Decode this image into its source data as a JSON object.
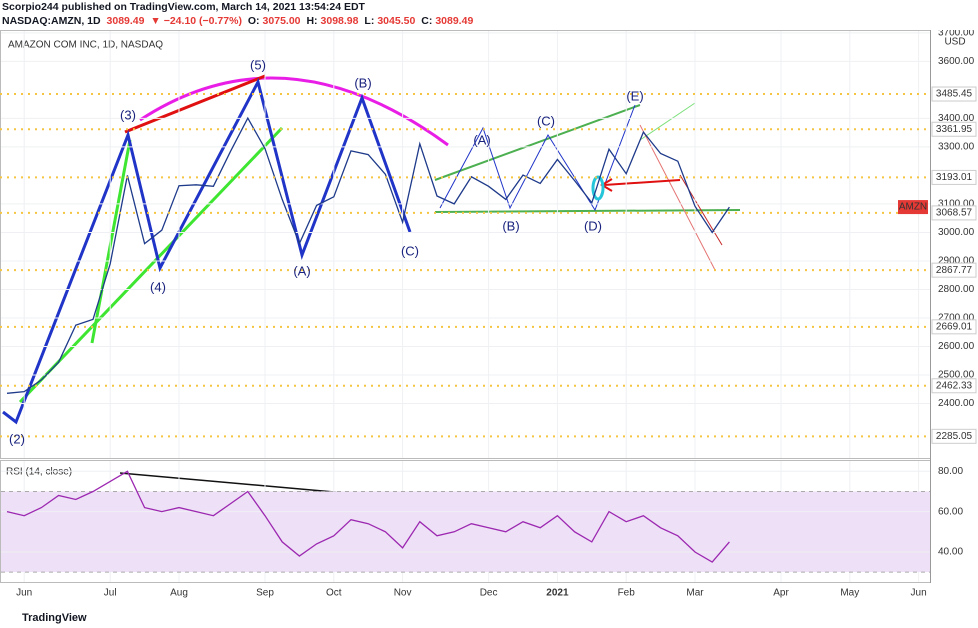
{
  "header": {
    "published": "Scorpio244 published on TradingView.com, March 14, 2021 13:54:24 EDT",
    "symbol": "NASDAQ:AMZN, 1D",
    "last": "3089.49",
    "change": "▼ −24.10 (−0.77%)",
    "open_label": "O:",
    "open": "3075.00",
    "high_label": "H:",
    "high": "3098.98",
    "low_label": "L:",
    "low": "3045.50",
    "close_label": "C:",
    "close": "3089.49"
  },
  "footer": "TradingView",
  "chart_data": [
    {
      "type": "line",
      "title": "AMAZON COM INC, 1D, NASDAQ",
      "currency": "USD",
      "last_label": "AMZN",
      "color": "#1e3a8a",
      "categories": [
        null,
        "Jun",
        null,
        null,
        null,
        null,
        "Jul",
        null,
        null,
        null,
        "Aug",
        null,
        null,
        null,
        null,
        "Sep",
        null,
        null,
        null,
        "Oct",
        null,
        null,
        null,
        "Nov",
        null,
        null,
        null,
        null,
        "Dec",
        null,
        null,
        null,
        "2021",
        null,
        null,
        null,
        "Feb",
        null,
        null,
        null,
        "Mar",
        null,
        null,
        null,
        null,
        "Apr",
        null,
        null,
        null,
        "May",
        null,
        null,
        null,
        "Jun"
      ],
      "values": [
        2436,
        2442,
        2483,
        2545,
        2675,
        2695,
        2890,
        3200,
        2961,
        3008,
        3164,
        3167,
        3162,
        3285,
        3401,
        3294,
        3116,
        2961,
        3095,
        3125,
        3286,
        3273,
        3204,
        3036,
        3311,
        3128,
        3100,
        3195,
        3162,
        3116,
        3201,
        3172,
        3256,
        3182,
        3104,
        3292,
        3206,
        3352,
        3277,
        3250,
        3092,
        3000,
        3089,
        null,
        null,
        null,
        null,
        null,
        null,
        null,
        null,
        null,
        null,
        null
      ],
      "ylim": [
        2209,
        3710
      ],
      "yticks": [
        {
          "value": 3700,
          "label": "3700.00"
        },
        {
          "value": 3600,
          "label": "3600.00"
        },
        {
          "value": 3400,
          "label": "3400.00"
        },
        {
          "value": 3300,
          "label": "3300.00"
        },
        {
          "value": 3100,
          "label": "3100.00"
        },
        {
          "value": 3000,
          "label": "3000.00"
        },
        {
          "value": 2900,
          "label": "2900.00"
        },
        {
          "value": 2800,
          "label": "2800.00"
        },
        {
          "value": 2700,
          "label": "2700.00"
        },
        {
          "value": 2600,
          "label": "2600.00"
        },
        {
          "value": 2500,
          "label": "2500.00"
        },
        {
          "value": 2400,
          "label": "2400.00"
        }
      ],
      "levels": [
        3485.45,
        3361.95,
        3193.01,
        3068.57,
        2867.77,
        2669.01,
        2462.33,
        2285.05
      ],
      "level_color": "#f5c542",
      "annotations": [
        "(2)",
        "(3)",
        "(4)",
        "(5)",
        "(A)",
        "(B)",
        "(C)",
        "(A)",
        "(B)",
        "(C)",
        "(D)",
        "(E)"
      ],
      "grid": true
    },
    {
      "type": "line",
      "title": "RSI (14, close)",
      "color": "#9c27b0",
      "band": [
        30,
        70
      ],
      "values": [
        60,
        58,
        62,
        68,
        66,
        70,
        75,
        80,
        62,
        60,
        62,
        60,
        58,
        64,
        70,
        58,
        45,
        38,
        44,
        48,
        56,
        54,
        50,
        42,
        55,
        48,
        50,
        54,
        52,
        50,
        55,
        52,
        58,
        50,
        45,
        60,
        55,
        58,
        52,
        48,
        40,
        35,
        45,
        null,
        null,
        null,
        null,
        null,
        null,
        null,
        null,
        null,
        null,
        null
      ],
      "ylim": [
        25.1,
        85.6
      ],
      "yticks": [
        {
          "value": 80,
          "label": "80.00"
        },
        {
          "value": 60,
          "label": "60.00"
        },
        {
          "value": 40,
          "label": "40.00"
        }
      ],
      "grid": true
    }
  ]
}
